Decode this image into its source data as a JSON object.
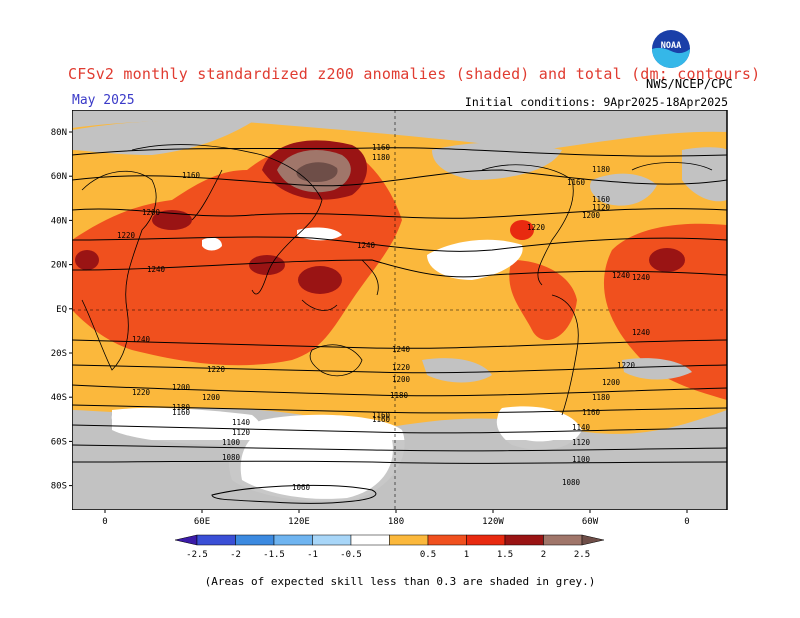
{
  "header": {
    "title": "CFSv2 monthly standardized z200 anomalies (shaded) and total (dm; contours)",
    "period": "May 2025",
    "initial_conditions": "Initial conditions: 9Apr2025-18Apr2025",
    "agency": "NWS/NCEP/CPC",
    "logo_text": "NOAA"
  },
  "map": {
    "lat_labels": [
      "80N",
      "60N",
      "40N",
      "20N",
      "EQ",
      "20S",
      "40S",
      "60S",
      "80S"
    ],
    "lon_labels": [
      "0",
      "60E",
      "120E",
      "180",
      "120W",
      "60W",
      "0"
    ],
    "contour_labels": [
      "1160",
      "1160",
      "1200",
      "1220",
      "1240",
      "1240",
      "1240",
      "1240",
      "1220",
      "1200",
      "1180",
      "1160",
      "1160",
      "1140",
      "1120",
      "1100",
      "1080",
      "1060",
      "1180",
      "1160",
      "1200",
      "1220",
      "1240",
      "1240",
      "1220",
      "1200",
      "1180",
      "1160",
      "1140",
      "1120",
      "1100",
      "1080",
      "1180",
      "1160",
      "1120",
      "1200",
      "1220",
      "1240",
      "1220",
      "1200",
      "1180",
      "1160"
    ],
    "colors": {
      "anom_0_5_1": "#fbb83c",
      "anom_1_1_5": "#f0501e",
      "anom_1_5_2": "#e82a10",
      "anom_2_2_5": "#9a1414",
      "anom_2_5_plus": "#a0766a",
      "anom_high": "#6e4e48",
      "low_skill": "#c2c2c2",
      "neutral": "#ffffff"
    }
  },
  "colorbar": {
    "ticks": [
      "-2.5",
      "-2",
      "-1.5",
      "-1",
      "-0.5",
      "0.5",
      "1",
      "1.5",
      "2",
      "2.5"
    ],
    "colors": [
      "#3b1ba8",
      "#3a4fd6",
      "#3c8ae0",
      "#6fb4f0",
      "#a8d6f8",
      "#ffffff",
      "#fbb83c",
      "#f0501e",
      "#e82a10",
      "#9a1414",
      "#a0766a",
      "#6e4e48"
    ]
  },
  "footnote": "(Areas of expected skill less than 0.3 are shaded in grey.)"
}
